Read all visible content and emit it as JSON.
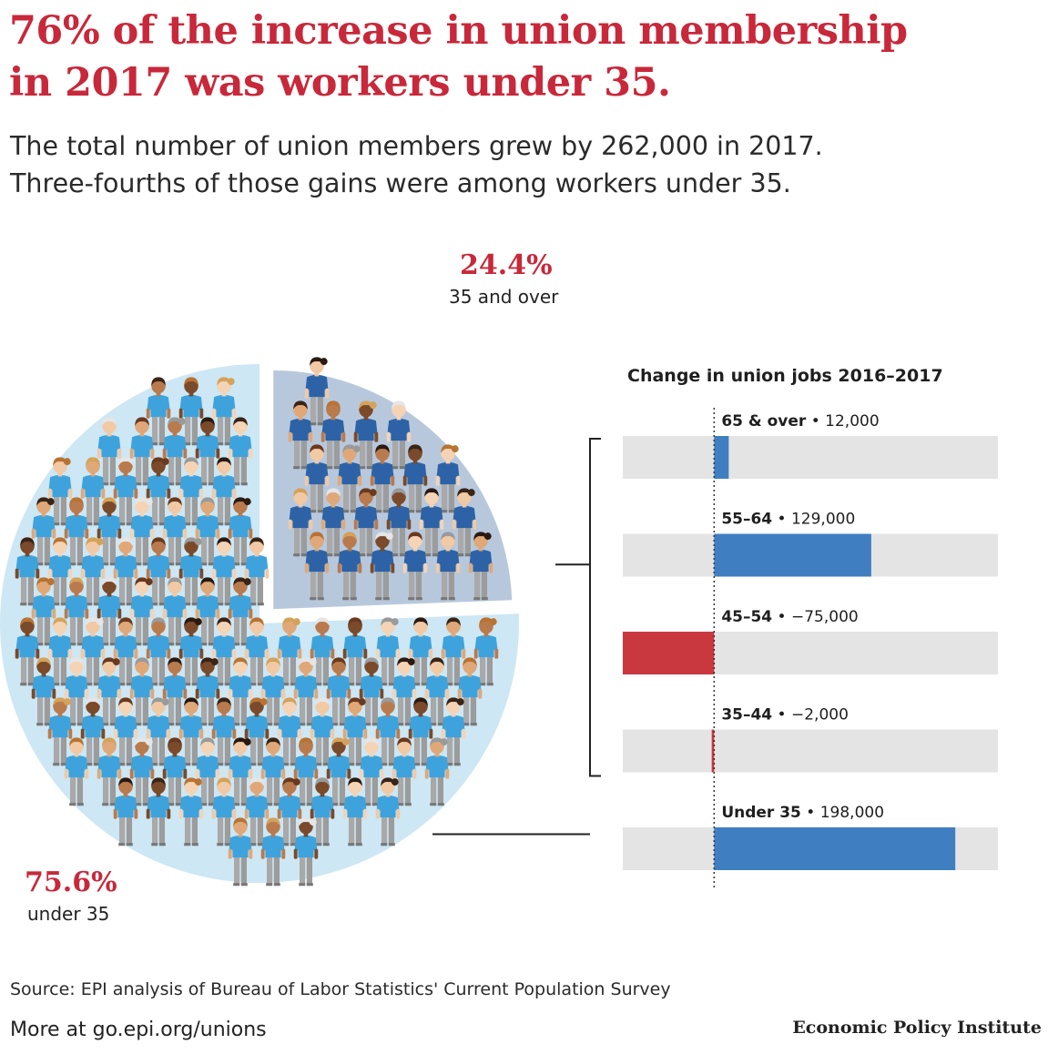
{
  "headline": {
    "line1": "76% of the increase in union membership",
    "line2": "in 2017 was workers under 35."
  },
  "subtitle": {
    "line1": "The total number of union members grew by 262,000 in 2017.",
    "line2": "Three-fourths of those gains were among workers under 35."
  },
  "colors": {
    "title_red": "#c8283a",
    "positive_blue": "#3f7fc1",
    "negative_red": "#c9383f",
    "track_grey": "#e4e4e4",
    "pie_light_blue": "#cde7f4",
    "pie_slate": "#b8c8dc",
    "shirt_light": "#3ea3dc",
    "shirt_dark": "#2d63a6"
  },
  "chart_data": [
    {
      "type": "pie",
      "categories": [
        "under 35",
        "35 and over"
      ],
      "values": [
        75.6,
        24.4
      ],
      "value_labels": [
        "75.6%",
        "24.4%"
      ]
    },
    {
      "type": "bar",
      "title": "Change in union jobs 2016–2017",
      "categories": [
        "65 & over",
        "55–64",
        "45–54",
        "35–44",
        "Under 35"
      ],
      "values": [
        12000,
        129000,
        -75000,
        -2000,
        198000
      ],
      "value_labels": [
        "12,000",
        "129,000",
        "−75,000",
        "−2,000",
        "198,000"
      ],
      "xlim": [
        -75000,
        233000
      ],
      "orientation": "horizontal",
      "zero_line": "dotted",
      "bracket_groups": [
        "35 and over",
        "under 35"
      ]
    }
  ],
  "footer": {
    "source": "Source: EPI analysis of Bureau of Labor Statistics' Current Population Survey",
    "more": "More at go.epi.org/unions",
    "brand": "Economic Policy Institute"
  }
}
